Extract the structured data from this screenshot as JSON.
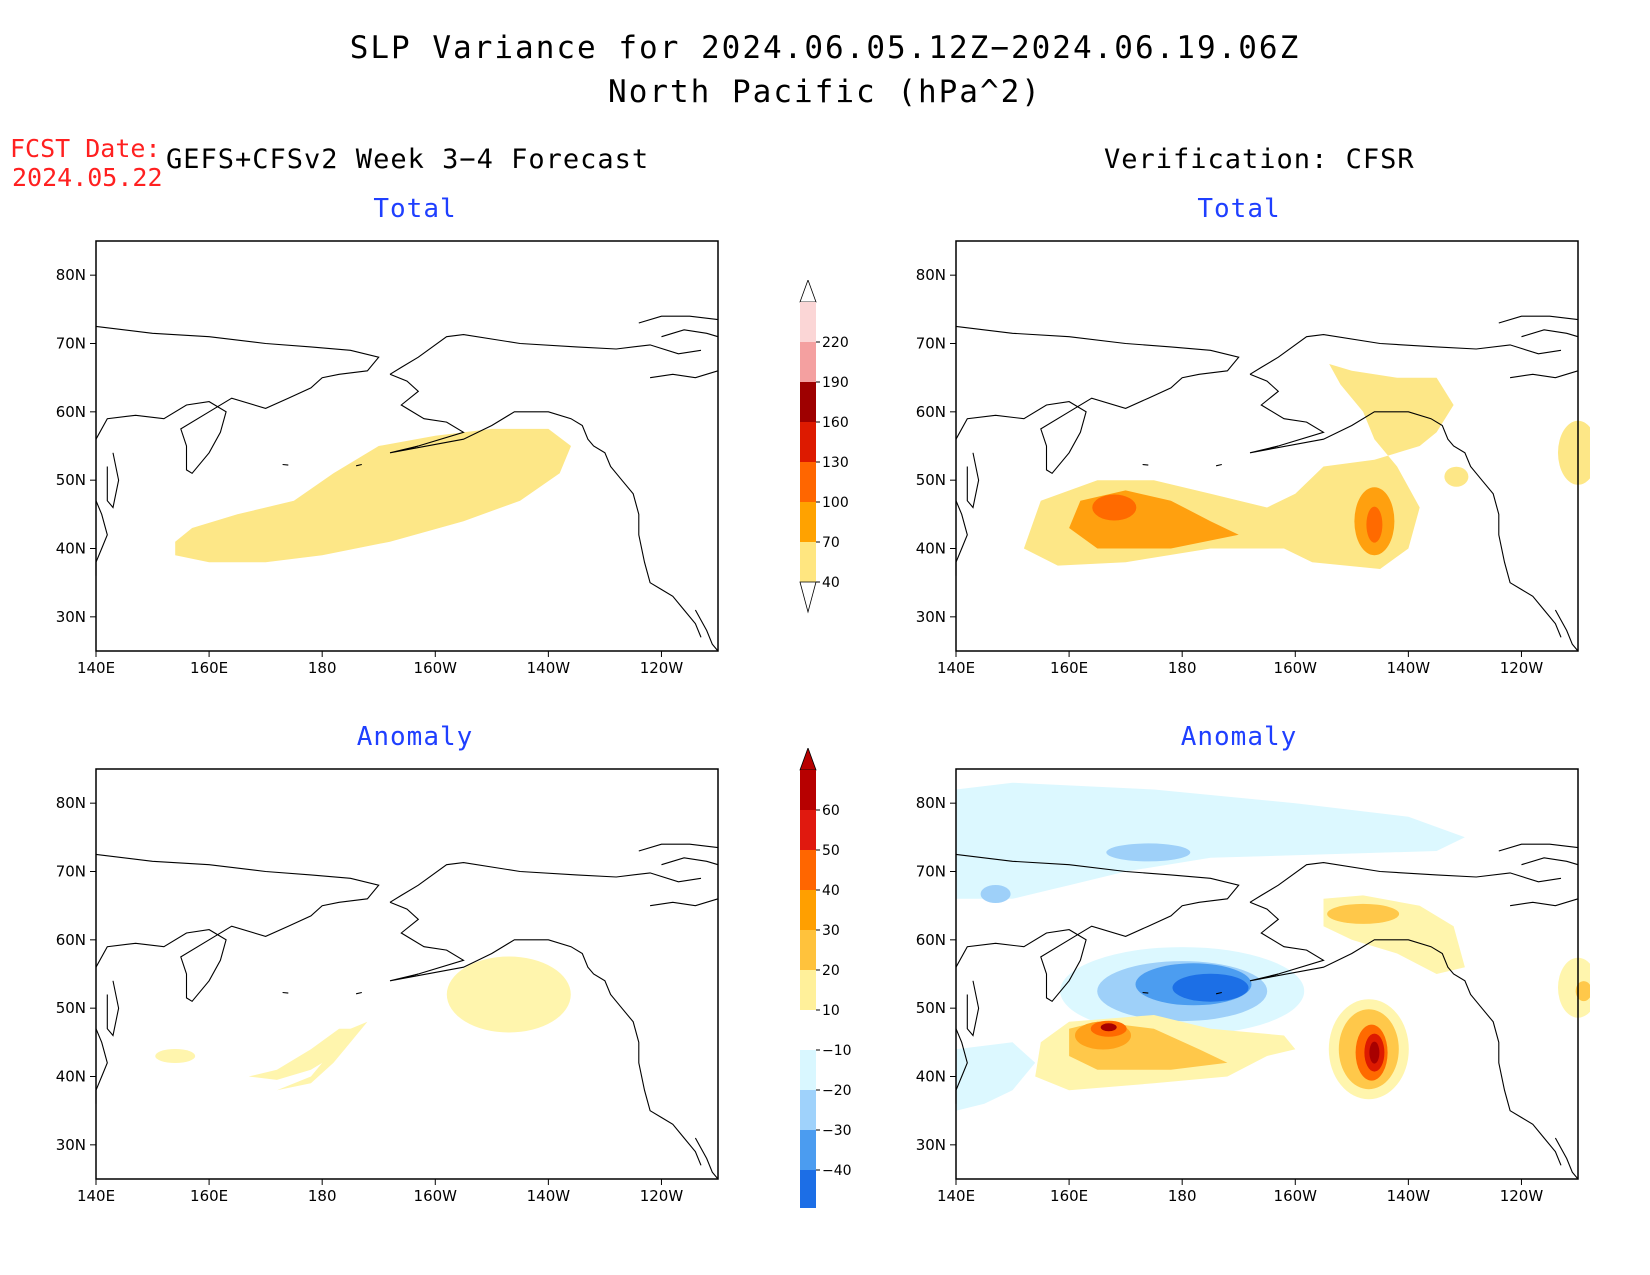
{
  "title": {
    "line1": "SLP Variance for 2024.06.05.12Z−2024.06.19.06Z",
    "line2": "North Pacific (hPa^2)"
  },
  "fcst": {
    "label": "FCST Date:",
    "date": "2024.05.22"
  },
  "headers": {
    "left": "GEFS+CFSv2 Week 3−4 Forecast",
    "right": "Verification: CFSR"
  },
  "panels": {
    "top_left": "Total",
    "top_right": "Total",
    "bottom_left": "Anomaly",
    "bottom_right": "Anomaly"
  },
  "axes": {
    "lat_labels": [
      "80N",
      "70N",
      "60N",
      "50N",
      "40N",
      "30N"
    ],
    "lon_labels": [
      "140E",
      "160E",
      "180",
      "160W",
      "140W",
      "120W"
    ]
  },
  "colorbars": {
    "total": {
      "levels": [
        "220",
        "190",
        "160",
        "130",
        "100",
        "70",
        "40"
      ],
      "colors": [
        "#fbd6d6",
        "#f4a0a0",
        "#9e0000",
        "#dd1a00",
        "#ff6600",
        "#ffa200",
        "#ffe680"
      ]
    },
    "anomaly": {
      "levels": [
        "60",
        "50",
        "40",
        "30",
        "20",
        "10",
        "−10",
        "−20",
        "−30",
        "−40"
      ],
      "colors": [
        "#b70000",
        "#e0190f",
        "#ff6600",
        "#ff9f00",
        "#ffc23c",
        "#fff09a",
        "#ffffff",
        "#d9f7ff",
        "#9fd2fb",
        "#4b9cf0",
        "#1c6ee6",
        "#1158d6"
      ]
    }
  },
  "fill_colors": {
    "c40": "#fde787",
    "c70": "#ffa00f",
    "c100": "#ff6a00",
    "a10": "#fff5ad",
    "a20": "#ffc84a",
    "a30": "#ffa21a",
    "a40": "#ff6a00",
    "a50": "#dd1a00",
    "a60": "#a80000",
    "an10": "#dcf8ff",
    "an20": "#9ed0f9",
    "an30": "#4c9df0",
    "an40": "#1c6fe6"
  }
}
